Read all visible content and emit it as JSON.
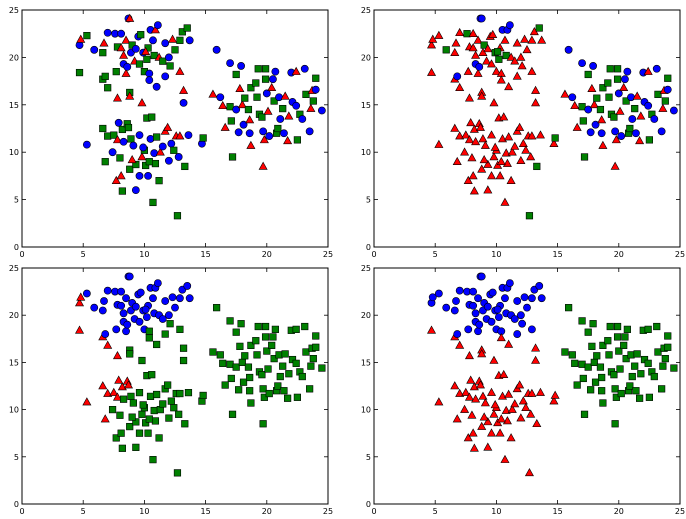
{
  "chart_data": {
    "type": "scatter",
    "layout": "2x2 grid",
    "xlim": [
      0,
      25
    ],
    "ylim": [
      0,
      25
    ],
    "xticks": [
      0,
      5,
      10,
      15,
      20,
      25
    ],
    "yticks": [
      0,
      5,
      10,
      15,
      20,
      25
    ],
    "grid": false,
    "markers": {
      "c": {
        "shape": "circle",
        "color": "#0000ff"
      },
      "t": {
        "shape": "triangle",
        "color": "#ff0000"
      },
      "s": {
        "shape": "square",
        "color": "#008000"
      }
    },
    "label_order": "each point's label string gives marker for panels [top-left, top-right, bottom-left, bottom-right]",
    "points": [
      [
        4.7,
        21.3,
        "cttc"
      ],
      [
        4.8,
        21.9,
        "tttc"
      ],
      [
        5.3,
        22.3,
        "stcc"
      ],
      [
        4.7,
        18.4,
        "sttt"
      ],
      [
        5.9,
        20.8,
        "cscc"
      ],
      [
        6.6,
        20.5,
        "stcc"
      ],
      [
        6.7,
        21.5,
        "ttcc"
      ],
      [
        6.6,
        17.7,
        "sttt"
      ],
      [
        6.8,
        18.0,
        "sccc"
      ],
      [
        7.0,
        16.8,
        "sttt"
      ],
      [
        7.0,
        22.6,
        "ctcc"
      ],
      [
        7.6,
        22.5,
        "cscc"
      ],
      [
        7.7,
        18.5,
        "stcc"
      ],
      [
        7.8,
        15.7,
        "tttt"
      ],
      [
        7.8,
        21.1,
        "stcc"
      ],
      [
        8.1,
        22.5,
        "ctcc"
      ],
      [
        8.1,
        21.0,
        "ttcc"
      ],
      [
        8.3,
        20.2,
        "ttcc"
      ],
      [
        8.3,
        19.3,
        "cccc"
      ],
      [
        8.5,
        18.3,
        "ttcc"
      ],
      [
        8.5,
        21.8,
        "ttcc"
      ],
      [
        8.7,
        24.1,
        "cccc"
      ],
      [
        8.8,
        24.1,
        "tccc"
      ],
      [
        8.8,
        16.3,
        "stst"
      ],
      [
        8.8,
        15.9,
        "ttst"
      ],
      [
        8.9,
        20.5,
        "ctcc"
      ],
      [
        9.0,
        21.3,
        "sscc"
      ],
      [
        9.2,
        19.6,
        "ttcc"
      ],
      [
        9.3,
        20.9,
        "ctcc"
      ],
      [
        9.5,
        22.2,
        "ctcc"
      ],
      [
        9.7,
        22.4,
        "stcc"
      ],
      [
        9.8,
        15.2,
        "ttst"
      ],
      [
        9.9,
        20.5,
        "cscc"
      ],
      [
        10.0,
        18.5,
        "stcc"
      ],
      [
        10.2,
        19.8,
        "sscc"
      ],
      [
        10.3,
        21.0,
        "stcc"
      ],
      [
        10.4,
        18.3,
        "ctsc"
      ],
      [
        10.4,
        17.6,
        "ctst"
      ],
      [
        10.5,
        22.9,
        "cccc"
      ],
      [
        10.7,
        21.8,
        "ctcc"
      ],
      [
        10.8,
        20.2,
        "sscc"
      ],
      [
        10.9,
        22.9,
        "tccc"
      ],
      [
        11.0,
        16.9,
        "ctst"
      ],
      [
        11.1,
        23.4,
        "cccc"
      ],
      [
        11.2,
        20.0,
        "ttcc"
      ],
      [
        11.5,
        19.6,
        "stcc"
      ],
      [
        11.7,
        21.5,
        "ctcc"
      ],
      [
        11.7,
        18.0,
        "ctsc"
      ],
      [
        12.0,
        20.0,
        "ctcc"
      ],
      [
        12.1,
        19.1,
        "stsc"
      ],
      [
        12.3,
        21.9,
        "ttcc"
      ],
      [
        12.5,
        20.8,
        "stcc"
      ],
      [
        12.9,
        21.8,
        "stcc"
      ],
      [
        12.9,
        18.5,
        "ttsc"
      ],
      [
        13.1,
        22.7,
        "stcc"
      ],
      [
        13.2,
        16.5,
        "ttst"
      ],
      [
        13.2,
        15.2,
        "ctst"
      ],
      [
        13.5,
        23.1,
        "sscc"
      ],
      [
        13.7,
        21.8,
        "ctcc"
      ],
      [
        10.1,
        20.6,
        "tscc"
      ],
      [
        9.6,
        19.3,
        "stcc"
      ],
      [
        8.6,
        19.0,
        "cccc"
      ],
      [
        5.3,
        10.8,
        "cttt"
      ],
      [
        6.6,
        12.5,
        "sttt"
      ],
      [
        6.8,
        9.0,
        "sttt"
      ],
      [
        7.0,
        11.7,
        "sttt"
      ],
      [
        7.4,
        10.0,
        "ctst"
      ],
      [
        7.5,
        11.8,
        "sttt"
      ],
      [
        7.7,
        7.0,
        "ttst"
      ],
      [
        7.8,
        11.3,
        "tttt"
      ],
      [
        7.9,
        13.1,
        "cttt"
      ],
      [
        8.0,
        9.4,
        "stst"
      ],
      [
        8.1,
        7.5,
        "ttst"
      ],
      [
        8.2,
        5.9,
        "stst"
      ],
      [
        8.2,
        12.4,
        "sttt"
      ],
      [
        8.3,
        11.1,
        "ctst"
      ],
      [
        8.6,
        13.0,
        "sttt"
      ],
      [
        8.7,
        12.6,
        "sttt"
      ],
      [
        8.8,
        8.2,
        "stst"
      ],
      [
        8.9,
        11.4,
        "stst"
      ],
      [
        9.1,
        10.7,
        "ctst"
      ],
      [
        9.3,
        6.0,
        "ctst"
      ],
      [
        9.3,
        8.7,
        "stst"
      ],
      [
        9.6,
        11.8,
        "ctst"
      ],
      [
        9.6,
        7.5,
        "ctst"
      ],
      [
        9.8,
        9.5,
        "ttst"
      ],
      [
        10.0,
        10.2,
        "stst"
      ],
      [
        10.1,
        8.6,
        "stst"
      ],
      [
        10.2,
        13.6,
        "stst"
      ],
      [
        10.3,
        7.5,
        "ctst"
      ],
      [
        10.5,
        11.4,
        "ctst"
      ],
      [
        10.6,
        13.7,
        "stst"
      ],
      [
        10.7,
        4.7,
        "stst"
      ],
      [
        10.8,
        9.9,
        "ctst"
      ],
      [
        10.9,
        8.8,
        "stst"
      ],
      [
        11.0,
        11.6,
        "stst"
      ],
      [
        11.2,
        7.0,
        "stst"
      ],
      [
        11.3,
        10.0,
        "ttst"
      ],
      [
        11.5,
        10.6,
        "ctst"
      ],
      [
        11.7,
        12.2,
        "ttst"
      ],
      [
        11.9,
        12.6,
        "ttst"
      ],
      [
        12.0,
        9.1,
        "ctst"
      ],
      [
        12.2,
        10.9,
        "ctst"
      ],
      [
        12.4,
        10.2,
        "stst"
      ],
      [
        12.6,
        11.7,
        "ttst"
      ],
      [
        12.7,
        3.3,
        "ssst"
      ],
      [
        12.8,
        9.5,
        "ctst"
      ],
      [
        12.9,
        11.7,
        "ttst"
      ],
      [
        13.3,
        8.5,
        "ssst"
      ],
      [
        13.6,
        11.8,
        "ctst"
      ],
      [
        14.7,
        10.9,
        "ctst"
      ],
      [
        14.8,
        11.5,
        "ssst"
      ],
      [
        9.9,
        10.5,
        "ctst"
      ],
      [
        10.4,
        9.0,
        "stst"
      ],
      [
        9.0,
        9.2,
        "ttst"
      ],
      [
        15.6,
        16.1,
        "ttss"
      ],
      [
        15.9,
        20.8,
        "ccss"
      ],
      [
        16.2,
        15.8,
        "ccss"
      ],
      [
        16.4,
        14.9,
        "ttss"
      ],
      [
        16.6,
        12.6,
        "ttss"
      ],
      [
        17.0,
        19.4,
        "ccss"
      ],
      [
        17.0,
        14.8,
        "ssss"
      ],
      [
        17.1,
        13.3,
        "ssss"
      ],
      [
        17.2,
        9.5,
        "ssss"
      ],
      [
        17.5,
        18.2,
        "ssss"
      ],
      [
        17.5,
        14.5,
        "ccss"
      ],
      [
        17.7,
        12.1,
        "ccss"
      ],
      [
        17.8,
        16.7,
        "ttss"
      ],
      [
        17.9,
        19.1,
        "ccss"
      ],
      [
        18.0,
        15.0,
        "ttss"
      ],
      [
        18.1,
        12.9,
        "ccss"
      ],
      [
        18.2,
        15.7,
        "ssss"
      ],
      [
        18.5,
        14.5,
        "ssss"
      ],
      [
        18.6,
        13.4,
        "ttss"
      ],
      [
        18.6,
        12.0,
        "ccss"
      ],
      [
        18.7,
        10.7,
        "ttss"
      ],
      [
        18.7,
        16.8,
        "ssss"
      ],
      [
        19.1,
        17.3,
        "ssss"
      ],
      [
        19.2,
        15.8,
        "ssss"
      ],
      [
        19.3,
        18.8,
        "ssss"
      ],
      [
        19.4,
        14.0,
        "ssss"
      ],
      [
        19.6,
        13.7,
        "ssss"
      ],
      [
        19.7,
        8.5,
        "ttss"
      ],
      [
        19.7,
        12.2,
        "ccss"
      ],
      [
        19.8,
        11.3,
        "ttss"
      ],
      [
        19.9,
        17.7,
        "ssss"
      ],
      [
        19.9,
        18.8,
        "ssss"
      ],
      [
        20.0,
        16.2,
        "ccss"
      ],
      [
        20.1,
        14.3,
        "ttss"
      ],
      [
        20.2,
        11.7,
        "ccss"
      ],
      [
        20.5,
        17.7,
        "ccss"
      ],
      [
        20.6,
        15.4,
        "ssss"
      ],
      [
        20.7,
        18.5,
        "ccss"
      ],
      [
        20.8,
        12.0,
        "ssss"
      ],
      [
        20.9,
        12.5,
        "ssss"
      ],
      [
        21.0,
        15.8,
        "ccss"
      ],
      [
        21.1,
        13.5,
        "ccss"
      ],
      [
        21.3,
        14.6,
        "ssss"
      ],
      [
        21.4,
        12.0,
        "ccss"
      ],
      [
        21.5,
        15.9,
        "ttss"
      ],
      [
        21.7,
        11.2,
        "ttss"
      ],
      [
        22.0,
        18.4,
        "ccss"
      ],
      [
        22.1,
        15.3,
        "ccss"
      ],
      [
        22.4,
        18.5,
        "ttss"
      ],
      [
        22.4,
        14.9,
        "ccss"
      ],
      [
        22.5,
        11.3,
        "ssss"
      ],
      [
        22.7,
        14.0,
        "ssss"
      ],
      [
        22.9,
        13.5,
        "ccss"
      ],
      [
        23.1,
        18.8,
        "ccss"
      ],
      [
        23.2,
        16.1,
        "ssss"
      ],
      [
        23.5,
        12.2,
        "ccss"
      ],
      [
        23.6,
        14.6,
        "ttss"
      ],
      [
        23.7,
        16.5,
        "ttss"
      ],
      [
        23.8,
        15.4,
        "ssss"
      ],
      [
        24.0,
        17.8,
        "ssss"
      ],
      [
        24.0,
        16.6,
        "ccss"
      ],
      [
        24.5,
        14.4,
        "ccss"
      ],
      [
        20.4,
        16.8,
        "ttss"
      ],
      [
        21.8,
        13.8,
        "ttss"
      ]
    ]
  }
}
